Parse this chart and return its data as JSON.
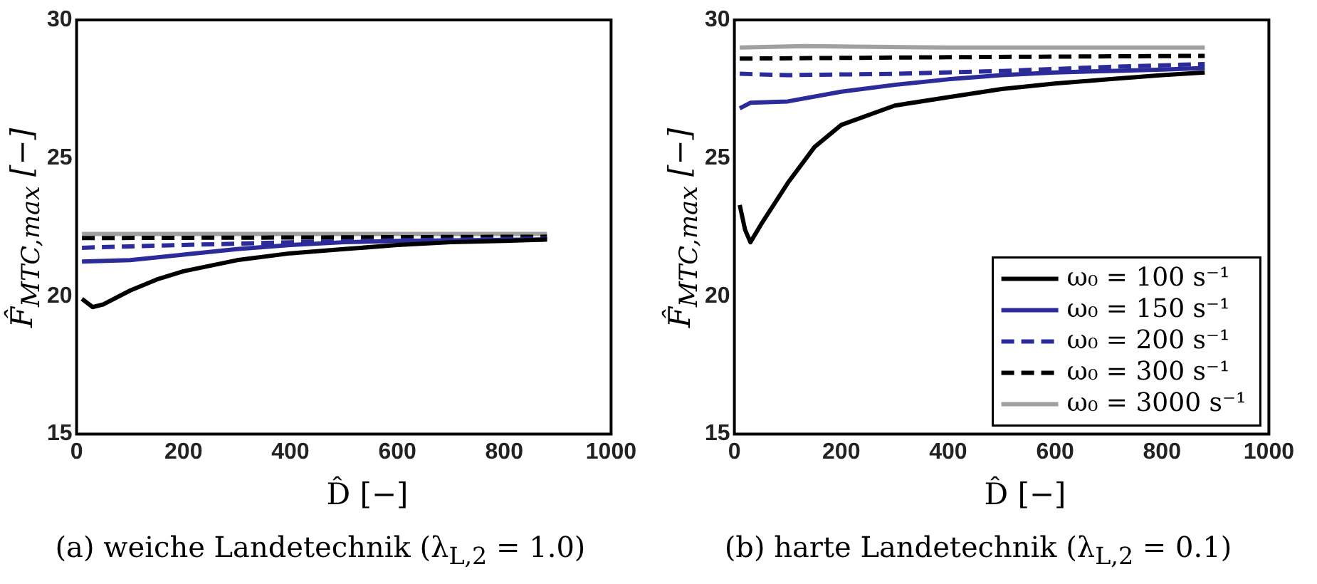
{
  "chart_data": [
    {
      "type": "line",
      "title": "(a) weiche Landetechnik (λ$_{L,2}$ = 1.0)",
      "xlabel": "D̂ [−]",
      "ylabel": "F̂$_{MTC,max}$ [−]",
      "xlim": [
        0,
        1000
      ],
      "xticks": [
        0,
        200,
        400,
        600,
        800,
        1000
      ],
      "ylim": [
        15,
        30
      ],
      "yticks": [
        15,
        20,
        25,
        30
      ],
      "grid": false,
      "legend": false,
      "marker": "none",
      "series": [
        {
          "color": "#000000",
          "line_style": "solid",
          "x": [
            10,
            30,
            50,
            100,
            150,
            200,
            300,
            400,
            500,
            600,
            700,
            800,
            880
          ],
          "values": [
            19.9,
            19.6,
            19.7,
            20.2,
            20.6,
            20.9,
            21.3,
            21.55,
            21.7,
            21.85,
            21.95,
            22.0,
            22.05
          ]
        },
        {
          "color": "#2b2b9a",
          "line_style": "solid",
          "x": [
            10,
            100,
            200,
            300,
            400,
            500,
            600,
            700,
            800,
            880
          ],
          "values": [
            21.25,
            21.3,
            21.5,
            21.7,
            21.85,
            21.95,
            22.0,
            22.02,
            22.04,
            22.05
          ]
        },
        {
          "color": "#2b2b9a",
          "line_style": "dashed",
          "x": [
            10,
            100,
            200,
            400,
            600,
            880
          ],
          "values": [
            21.75,
            21.8,
            21.85,
            21.95,
            22.02,
            22.08
          ]
        },
        {
          "color": "#000000",
          "line_style": "dashed",
          "x": [
            10,
            400,
            880
          ],
          "values": [
            22.1,
            22.12,
            22.15
          ]
        },
        {
          "color": "#a0a0a0",
          "line_style": "solid",
          "x": [
            10,
            400,
            880
          ],
          "values": [
            22.25,
            22.25,
            22.25
          ]
        }
      ]
    },
    {
      "type": "line",
      "title": "(b) harte Landetechnik (λ$_{L,2}$ = 0.1)",
      "xlabel": "D̂ [−]",
      "ylabel": "F̂$_{MTC,max}$ [−]",
      "xlim": [
        0,
        1000
      ],
      "xticks": [
        0,
        200,
        400,
        600,
        800,
        1000
      ],
      "ylim": [
        15,
        30
      ],
      "yticks": [
        15,
        20,
        25,
        30
      ],
      "grid": false,
      "legend": "bottom right",
      "marker": "none",
      "series": [
        {
          "name": "ω₀ = 100 s⁻¹",
          "color": "#000000",
          "line_style": "solid",
          "x": [
            10,
            20,
            30,
            50,
            80,
            100,
            150,
            200,
            300,
            400,
            500,
            600,
            700,
            800,
            880
          ],
          "values": [
            23.3,
            22.4,
            21.95,
            22.6,
            23.5,
            24.1,
            25.4,
            26.2,
            26.9,
            27.2,
            27.5,
            27.7,
            27.85,
            28.0,
            28.1
          ]
        },
        {
          "name": "ω₀ = 150 s⁻¹",
          "color": "#2b2b9a",
          "line_style": "solid",
          "x": [
            10,
            30,
            100,
            200,
            300,
            400,
            500,
            600,
            700,
            800,
            880
          ],
          "values": [
            26.8,
            27.0,
            27.05,
            27.4,
            27.65,
            27.85,
            28.0,
            28.1,
            28.15,
            28.2,
            28.26
          ]
        },
        {
          "name": "ω₀ = 200 s⁻¹",
          "color": "#2b2b9a",
          "line_style": "dashed",
          "x": [
            10,
            100,
            300,
            500,
            700,
            880
          ],
          "values": [
            28.05,
            28.0,
            28.05,
            28.15,
            28.3,
            28.4
          ]
        },
        {
          "name": "ω₀ = 300 s⁻¹",
          "color": "#000000",
          "line_style": "dashed",
          "x": [
            10,
            400,
            880
          ],
          "values": [
            28.6,
            28.65,
            28.7
          ]
        },
        {
          "name": "ω₀ = 3000 s⁻¹",
          "color": "#a0a0a0",
          "line_style": "solid",
          "x": [
            10,
            130,
            400,
            880
          ],
          "values": [
            29.0,
            29.05,
            29.0,
            29.0
          ]
        }
      ]
    }
  ]
}
